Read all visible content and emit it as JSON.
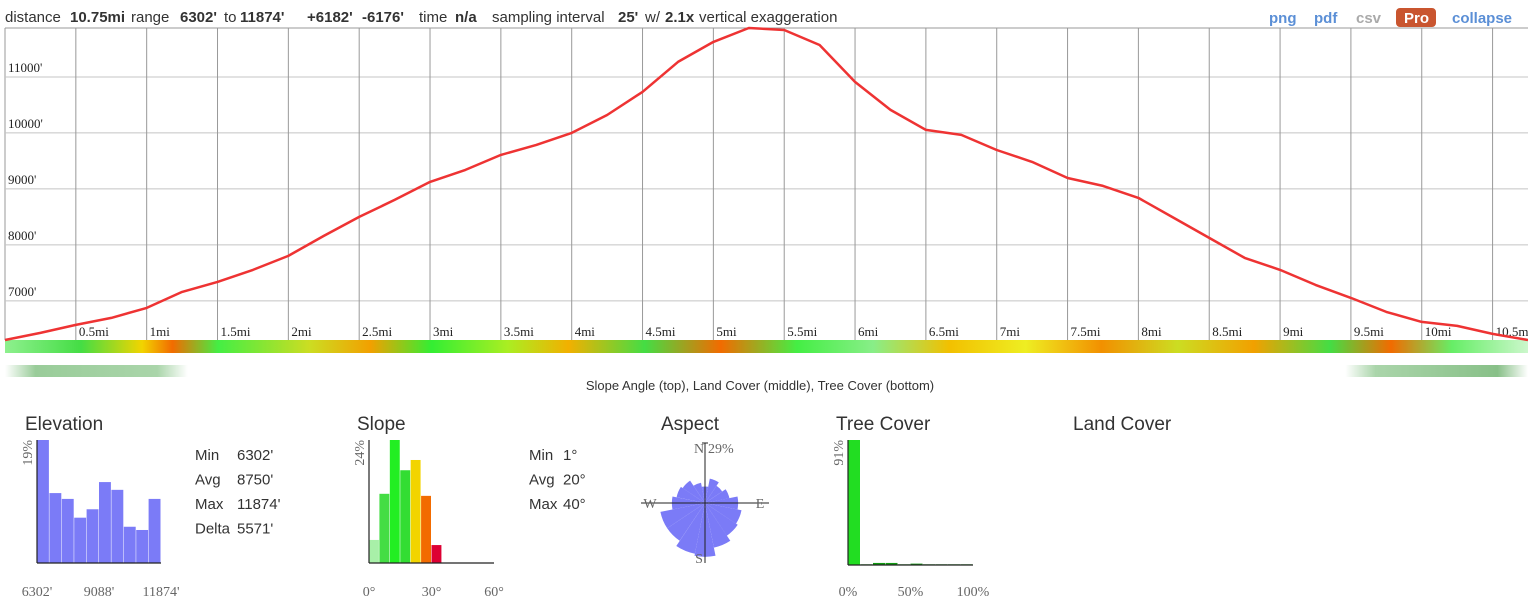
{
  "header": {
    "segments": [
      {
        "text": "distance",
        "bold": false
      },
      {
        "text": "10.75mi",
        "bold": true
      },
      {
        "text": "range",
        "bold": false
      },
      {
        "text": "6302'",
        "bold": true
      },
      {
        "text": "to",
        "bold": false
      },
      {
        "text": "11874'",
        "bold": true
      },
      {
        "text": "+6182'",
        "bold": true,
        "color": "#22a022"
      },
      {
        "text": "-6176'",
        "bold": true,
        "color": "#e01010"
      },
      {
        "text": "time",
        "bold": false
      },
      {
        "text": "n/a",
        "bold": true
      },
      {
        "text": "sampling interval",
        "bold": false
      },
      {
        "text": "25'",
        "bold": true
      },
      {
        "text": "w/",
        "bold": false
      },
      {
        "text": "2.1x",
        "bold": true
      },
      {
        "text": "vertical exaggeration",
        "bold": false
      }
    ],
    "links": [
      {
        "text": "png",
        "color": "#5b8fd6"
      },
      {
        "text": "pdf",
        "color": "#5b8fd6"
      },
      {
        "text": "csv",
        "color": "#aaaaaa"
      },
      {
        "text": "Pro",
        "color": "#ffffff",
        "background": "#c9552f"
      },
      {
        "text": "collapse",
        "color": "#5b8fd6"
      }
    ]
  },
  "caption": "Slope Angle (top), Land Cover (middle), Tree Cover (bottom)",
  "land_cover_title": "Land Cover",
  "stats": {
    "elevation": [
      [
        "Min",
        "6302'"
      ],
      [
        "Avg",
        "8750'"
      ],
      [
        "Max",
        "11874'"
      ],
      [
        "Delta",
        "5571'"
      ]
    ],
    "slope": [
      [
        "Min",
        "1°"
      ],
      [
        "Avg",
        "20°"
      ],
      [
        "Max",
        "40°"
      ]
    ]
  },
  "chart_data": [
    {
      "type": "line",
      "color": "#ee3333",
      "x": [
        0,
        0.25,
        0.5,
        0.75,
        1,
        1.25,
        1.5,
        1.75,
        2,
        2.25,
        2.5,
        2.75,
        3,
        3.25,
        3.5,
        3.75,
        4,
        4.25,
        4.5,
        4.75,
        5,
        5.25,
        5.5,
        5.75,
        6,
        6.25,
        6.5,
        6.75,
        7,
        7.25,
        7.5,
        7.75,
        8,
        8.25,
        8.5,
        8.75,
        9,
        9.25,
        9.5,
        9.75,
        10,
        10.25,
        10.5,
        10.75
      ],
      "values": [
        6302,
        6429,
        6571,
        6696,
        6875,
        7161,
        7339,
        7554,
        7804,
        8161,
        8500,
        8804,
        9125,
        9339,
        9607,
        9786,
        10000,
        10321,
        10732,
        11268,
        11625,
        11874,
        11839,
        11571,
        10911,
        10411,
        10054,
        9964,
        9696,
        9482,
        9196,
        9054,
        8839,
        8482,
        8125,
        7768,
        7554,
        7286,
        7054,
        6804,
        6625,
        6554,
        6411,
        6302
      ],
      "xlim": [
        0,
        10.75
      ],
      "ylim": [
        6302,
        11874
      ],
      "xticks": [
        {
          "value": 0.5,
          "label": "0.5mi"
        },
        {
          "value": 1,
          "label": "1mi"
        },
        {
          "value": 1.5,
          "label": "1.5mi"
        },
        {
          "value": 2,
          "label": "2mi"
        },
        {
          "value": 2.5,
          "label": "2.5mi"
        },
        {
          "value": 3,
          "label": "3mi"
        },
        {
          "value": 3.5,
          "label": "3.5mi"
        },
        {
          "value": 4,
          "label": "4mi"
        },
        {
          "value": 4.5,
          "label": "4.5mi"
        },
        {
          "value": 5,
          "label": "5mi"
        },
        {
          "value": 5.5,
          "label": "5.5mi"
        },
        {
          "value": 6,
          "label": "6mi"
        },
        {
          "value": 6.5,
          "label": "6.5mi"
        },
        {
          "value": 7,
          "label": "7mi"
        },
        {
          "value": 7.5,
          "label": "7.5mi"
        },
        {
          "value": 8,
          "label": "8mi"
        },
        {
          "value": 8.5,
          "label": "8.5mi"
        },
        {
          "value": 9,
          "label": "9mi"
        },
        {
          "value": 9.5,
          "label": "9.5mi"
        },
        {
          "value": 10,
          "label": "10mi"
        },
        {
          "value": 10.5,
          "label": "10.5mi"
        }
      ],
      "yticks": [
        {
          "value": 7000,
          "label": "7000'"
        },
        {
          "value": 8000,
          "label": "8000'"
        },
        {
          "value": 9000,
          "label": "9000'"
        },
        {
          "value": 10000,
          "label": "10000'"
        },
        {
          "value": 11000,
          "label": "11000'"
        }
      ],
      "grid": true
    },
    {
      "type": "histogram",
      "title": "Elevation",
      "color": "#7b7bf7",
      "bins": [
        6302,
        6859.2,
        7416.4,
        7973.6,
        8530.8,
        9088,
        9645.2,
        10202.4,
        10759.6,
        11316.8,
        11874
      ],
      "values": [
        19,
        10.8,
        9.9,
        7,
        8.3,
        12.5,
        11.3,
        5.6,
        5.1,
        9.9
      ],
      "xlim": [
        6302,
        11874
      ],
      "ylim": [
        0,
        19
      ],
      "xticks": [
        {
          "value": 6302,
          "label": "6302'"
        },
        {
          "value": 9088,
          "label": "9088'"
        },
        {
          "value": 11874,
          "label": "11874'"
        }
      ],
      "yticks": [
        {
          "value": 19,
          "label": "19%"
        }
      ]
    },
    {
      "type": "histogram",
      "title": "Slope",
      "colors": [
        "#a8f0a8",
        "#44dd44",
        "#22ee22",
        "#33dd33",
        "#f2d400",
        "#f26b00",
        "#dd0033"
      ],
      "bins": [
        0,
        5,
        10,
        15,
        20,
        25,
        30,
        35
      ],
      "values": [
        4.5,
        13.5,
        24,
        18.1,
        20.1,
        13.1,
        3.5
      ],
      "xlim": [
        0,
        60
      ],
      "ylim": [
        0,
        24
      ],
      "xticks": [
        {
          "value": 0,
          "label": "0°"
        },
        {
          "value": 30,
          "label": "30°"
        },
        {
          "value": 60,
          "label": "60°"
        }
      ],
      "yticks": [
        {
          "value": 24,
          "label": "24%"
        }
      ]
    },
    {
      "type": "rose",
      "title": "Aspect",
      "color": "#7b7bf7",
      "categories": [
        "N",
        null,
        null,
        null,
        "E",
        null,
        null,
        null,
        "S",
        null,
        null,
        null,
        "W",
        null,
        null,
        null
      ],
      "values": [
        8,
        12,
        10,
        12,
        16,
        18,
        19,
        22,
        26,
        25,
        22,
        22,
        16,
        14,
        13,
        10
      ],
      "rlim": [
        0,
        29
      ],
      "rticks": [
        {
          "value": 29,
          "label": "29%"
        }
      ]
    },
    {
      "type": "histogram",
      "title": "Tree Cover",
      "colors": [
        "#22dd22",
        "#119911",
        "#119911",
        "#119911",
        "#119911",
        "#119911",
        "#119911",
        "#119911",
        "#119911",
        "#119911"
      ],
      "bins": [
        0,
        10,
        20,
        30,
        40,
        50,
        60,
        70,
        80,
        90,
        100
      ],
      "values": [
        91,
        0.5,
        1.5,
        1.5,
        0.5,
        1,
        0.5,
        0.5,
        0.5,
        0.5
      ],
      "xlim": [
        0,
        100
      ],
      "ylim": [
        0,
        91
      ],
      "xticks": [
        {
          "value": 0,
          "label": "0%"
        },
        {
          "value": 50,
          "label": "50%"
        },
        {
          "value": 100,
          "label": "100%"
        }
      ],
      "yticks": [
        {
          "value": 91,
          "label": "91%"
        }
      ]
    }
  ]
}
